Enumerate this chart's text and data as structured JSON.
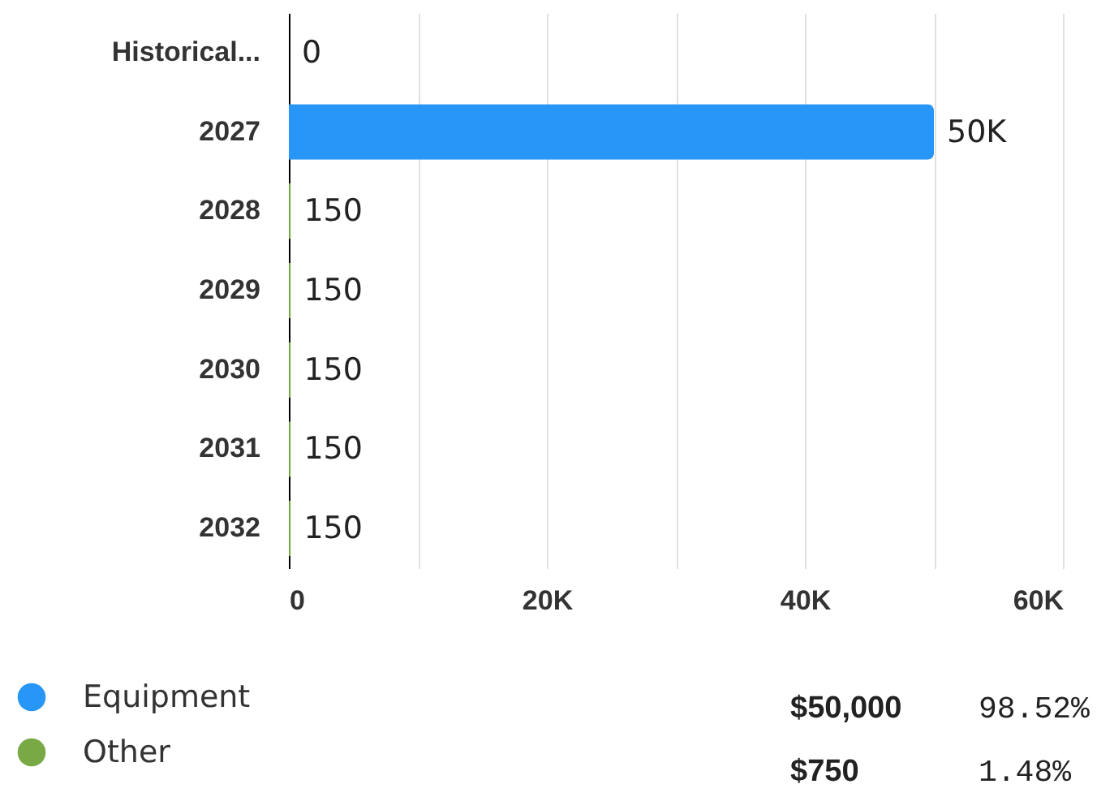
{
  "chart_data": {
    "type": "bar",
    "orientation": "horizontal",
    "stacked": true,
    "categories": [
      "Historical...",
      "2027",
      "2028",
      "2029",
      "2030",
      "2031",
      "2032"
    ],
    "series": [
      {
        "name": "Equipment",
        "color": "#2896f7",
        "values": [
          0,
          50000,
          0,
          0,
          0,
          0,
          0
        ]
      },
      {
        "name": "Other",
        "color": "#78a944",
        "values": [
          0,
          0,
          150,
          150,
          150,
          150,
          150
        ]
      }
    ],
    "totals": [
      "0",
      "50K",
      "150",
      "150",
      "150",
      "150",
      "150"
    ],
    "xlim": [
      0,
      60000
    ],
    "xticks": [
      0,
      {
        "value": 10000,
        "label": null
      },
      {
        "value": 20000,
        "label": "20K"
      },
      {
        "value": 30000,
        "label": null
      },
      {
        "value": 40000,
        "label": "40K"
      },
      {
        "value": 50000,
        "label": null
      },
      {
        "value": 60000,
        "label": "60K"
      }
    ],
    "grid": "x",
    "legend": "bottom",
    "annotations": [
      "$50,000",
      "98.52%",
      "$750",
      "1.48%"
    ]
  }
}
